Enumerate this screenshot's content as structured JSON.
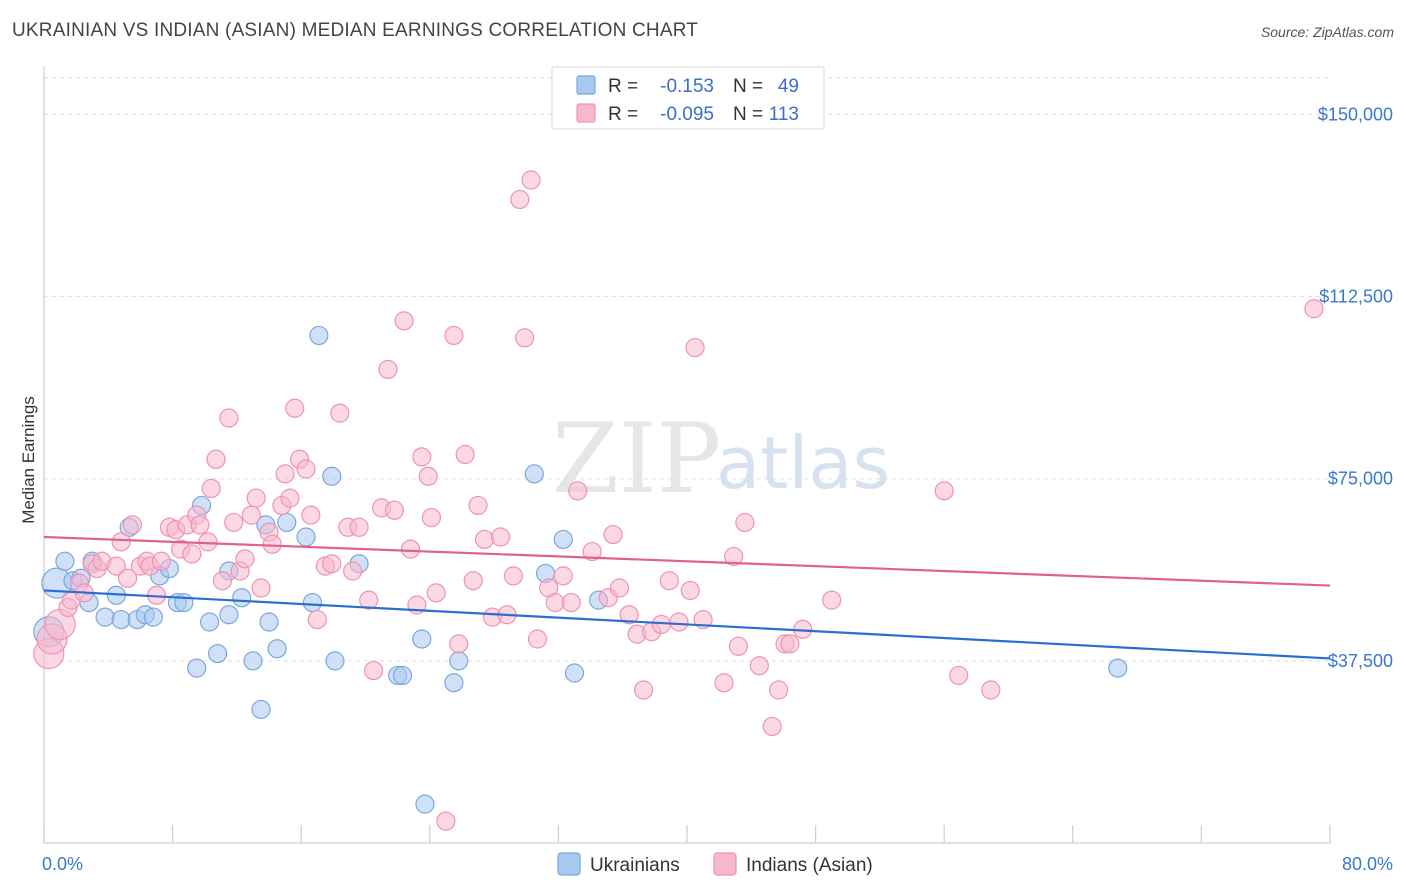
{
  "header": {
    "title": "UKRAINIAN VS INDIAN (ASIAN) MEDIAN EARNINGS CORRELATION CHART",
    "source": "Source: ZipAtlas.com"
  },
  "watermark": {
    "zip": "ZIP",
    "atlas": "atlas"
  },
  "legend": {
    "r_label": "R =",
    "n_label": "N =",
    "rows": [
      {
        "r": "-0.153",
        "n": "49"
      },
      {
        "r": "-0.095",
        "n": "113"
      }
    ]
  },
  "bottom_legend": [
    "Ukrainians",
    "Indians (Asian)"
  ],
  "chart_data": {
    "type": "scatter",
    "ylabel": "Median Earnings",
    "xlim": [
      0,
      80
    ],
    "ylim": [
      0,
      157500
    ],
    "y_ticks": [
      {
        "value": 37500,
        "label": "$37,500"
      },
      {
        "value": 75000,
        "label": "$75,000"
      },
      {
        "value": 112500,
        "label": "$112,500"
      },
      {
        "value": 150000,
        "label": "$150,000"
      }
    ],
    "x_tick_labels": [
      {
        "value": 0,
        "label": "0.0%"
      },
      {
        "value": 80,
        "label": "80.0%"
      }
    ],
    "grid": "horizontal dashed",
    "colors": {
      "ukrainians_fill": "#a9c8f0",
      "ukrainians_stroke": "#7aa7e0",
      "ukrainians_line": "#2a6fd0",
      "indians_fill": "#f7b8cd",
      "indians_stroke": "#ee93b3",
      "indians_line": "#e0608e"
    },
    "series": [
      {
        "name": "Ukrainians",
        "trend": {
          "x": [
            0,
            80
          ],
          "y": [
            52000,
            38000
          ]
        },
        "points": [
          [
            0.3,
            43500
          ],
          [
            0.8,
            53500
          ],
          [
            1.3,
            58000
          ],
          [
            1.8,
            54000
          ],
          [
            2.3,
            54500
          ],
          [
            3.0,
            58000
          ],
          [
            2.8,
            49500
          ],
          [
            3.8,
            46500
          ],
          [
            4.5,
            51000
          ],
          [
            4.8,
            46000
          ],
          [
            5.3,
            65000
          ],
          [
            5.8,
            46000
          ],
          [
            6.3,
            47000
          ],
          [
            6.8,
            46500
          ],
          [
            7.2,
            55000
          ],
          [
            7.8,
            56500
          ],
          [
            8.3,
            49500
          ],
          [
            8.7,
            49500
          ],
          [
            9.5,
            36000
          ],
          [
            9.8,
            69500
          ],
          [
            10.3,
            45500
          ],
          [
            10.8,
            39000
          ],
          [
            11.5,
            47000
          ],
          [
            11.5,
            56000
          ],
          [
            12.3,
            50500
          ],
          [
            13.0,
            37500
          ],
          [
            13.5,
            27500
          ],
          [
            13.8,
            65500
          ],
          [
            14.0,
            45500
          ],
          [
            14.5,
            40000
          ],
          [
            15.1,
            66000
          ],
          [
            16.3,
            63000
          ],
          [
            16.7,
            49500
          ],
          [
            17.1,
            104500
          ],
          [
            17.9,
            75500
          ],
          [
            18.1,
            37500
          ],
          [
            19.6,
            57500
          ],
          [
            22.0,
            34500
          ],
          [
            22.3,
            34500
          ],
          [
            23.5,
            42000
          ],
          [
            23.7,
            8000
          ],
          [
            25.5,
            33000
          ],
          [
            25.8,
            37500
          ],
          [
            30.5,
            76000
          ],
          [
            31.2,
            55500
          ],
          [
            32.3,
            62500
          ],
          [
            33.0,
            35000
          ],
          [
            34.5,
            50000
          ],
          [
            66.8,
            36000
          ]
        ]
      },
      {
        "name": "Indians (Asian)",
        "trend": {
          "x": [
            0,
            80
          ],
          "y": [
            63000,
            53000
          ]
        },
        "points": [
          [
            0.3,
            39000
          ],
          [
            0.5,
            42000
          ],
          [
            1.0,
            45000
          ],
          [
            1.5,
            48500
          ],
          [
            1.7,
            50000
          ],
          [
            2.2,
            53500
          ],
          [
            2.5,
            51500
          ],
          [
            3.0,
            57500
          ],
          [
            3.3,
            56500
          ],
          [
            3.6,
            58000
          ],
          [
            4.5,
            57000
          ],
          [
            4.8,
            62000
          ],
          [
            5.2,
            54500
          ],
          [
            5.5,
            65500
          ],
          [
            6.0,
            57000
          ],
          [
            6.4,
            58000
          ],
          [
            6.6,
            57000
          ],
          [
            7.0,
            51000
          ],
          [
            7.3,
            58000
          ],
          [
            7.8,
            65000
          ],
          [
            8.2,
            64500
          ],
          [
            8.5,
            60500
          ],
          [
            8.9,
            65500
          ],
          [
            9.2,
            59500
          ],
          [
            9.5,
            67500
          ],
          [
            9.7,
            65500
          ],
          [
            10.2,
            62000
          ],
          [
            10.4,
            73000
          ],
          [
            10.7,
            79000
          ],
          [
            11.1,
            54000
          ],
          [
            11.5,
            87500
          ],
          [
            11.8,
            66000
          ],
          [
            12.2,
            56000
          ],
          [
            12.5,
            58500
          ],
          [
            12.9,
            67500
          ],
          [
            13.2,
            71000
          ],
          [
            13.5,
            52500
          ],
          [
            14.0,
            64000
          ],
          [
            14.2,
            61500
          ],
          [
            14.8,
            69500
          ],
          [
            15.0,
            76000
          ],
          [
            15.3,
            71000
          ],
          [
            15.6,
            89500
          ],
          [
            15.9,
            79000
          ],
          [
            16.3,
            77000
          ],
          [
            16.6,
            67500
          ],
          [
            17.0,
            46000
          ],
          [
            17.5,
            57000
          ],
          [
            17.9,
            57500
          ],
          [
            18.4,
            88500
          ],
          [
            18.9,
            65000
          ],
          [
            19.2,
            56000
          ],
          [
            19.6,
            65000
          ],
          [
            20.2,
            50000
          ],
          [
            20.5,
            35500
          ],
          [
            21.0,
            69000
          ],
          [
            21.4,
            97500
          ],
          [
            21.8,
            68500
          ],
          [
            22.4,
            107500
          ],
          [
            22.8,
            60500
          ],
          [
            23.2,
            49000
          ],
          [
            23.5,
            79500
          ],
          [
            23.9,
            75500
          ],
          [
            24.1,
            67000
          ],
          [
            24.4,
            51500
          ],
          [
            25.0,
            4500
          ],
          [
            25.5,
            104500
          ],
          [
            25.8,
            41000
          ],
          [
            26.2,
            80000
          ],
          [
            26.7,
            54000
          ],
          [
            27.0,
            69500
          ],
          [
            27.4,
            62500
          ],
          [
            27.9,
            46500
          ],
          [
            28.4,
            63000
          ],
          [
            28.8,
            47000
          ],
          [
            29.2,
            55000
          ],
          [
            29.6,
            132500
          ],
          [
            29.9,
            104000
          ],
          [
            30.3,
            136500
          ],
          [
            30.7,
            42000
          ],
          [
            31.4,
            52500
          ],
          [
            31.8,
            49500
          ],
          [
            32.3,
            55000
          ],
          [
            32.8,
            49500
          ],
          [
            33.2,
            72500
          ],
          [
            34.1,
            60000
          ],
          [
            35.1,
            50500
          ],
          [
            35.4,
            63500
          ],
          [
            35.8,
            52500
          ],
          [
            36.4,
            47000
          ],
          [
            36.9,
            43000
          ],
          [
            37.3,
            31500
          ],
          [
            37.8,
            43500
          ],
          [
            38.4,
            45000
          ],
          [
            38.9,
            54000
          ],
          [
            39.5,
            45500
          ],
          [
            40.2,
            52000
          ],
          [
            40.5,
            102000
          ],
          [
            41.0,
            46000
          ],
          [
            42.3,
            33000
          ],
          [
            42.9,
            59000
          ],
          [
            43.2,
            40500
          ],
          [
            43.6,
            66000
          ],
          [
            44.5,
            36500
          ],
          [
            45.3,
            24000
          ],
          [
            45.7,
            31500
          ],
          [
            46.1,
            41000
          ],
          [
            46.4,
            41000
          ],
          [
            47.2,
            44000
          ],
          [
            49.0,
            50000
          ],
          [
            56.0,
            72500
          ],
          [
            56.9,
            34500
          ],
          [
            58.9,
            31500
          ],
          [
            79.0,
            110000
          ]
        ]
      }
    ]
  }
}
